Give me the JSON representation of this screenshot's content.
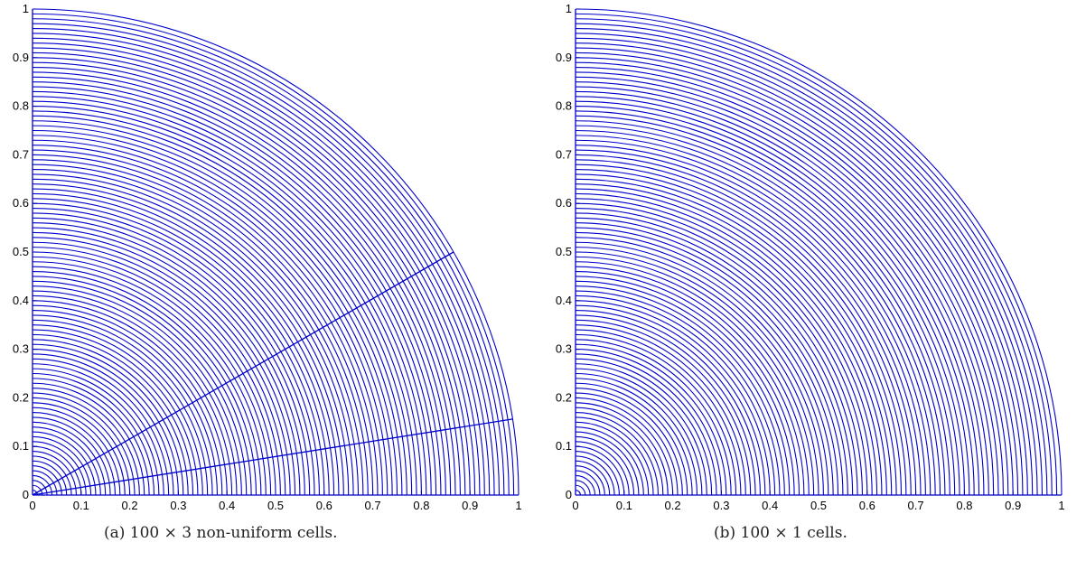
{
  "chart_data": [
    {
      "type": "mesh",
      "caption": "(a) 100 × 3 non-uniform cells.",
      "xlim": [
        0,
        1
      ],
      "ylim": [
        0,
        1
      ],
      "radial_cells": 100,
      "angular_cells": 3,
      "outer_radius": 1,
      "ray_angles_deg": [
        0,
        9,
        30,
        90
      ],
      "line_color": "#0000cc",
      "x_ticks": [
        "0",
        "0.1",
        "0.2",
        "0.3",
        "0.4",
        "0.5",
        "0.6",
        "0.7",
        "0.8",
        "0.9",
        "1"
      ],
      "y_ticks": [
        "0",
        "0.1",
        "0.2",
        "0.3",
        "0.4",
        "0.5",
        "0.6",
        "0.7",
        "0.8",
        "0.9",
        "1"
      ]
    },
    {
      "type": "mesh",
      "caption": "(b) 100 × 1 cells.",
      "xlim": [
        0,
        1
      ],
      "ylim": [
        0,
        1
      ],
      "radial_cells": 100,
      "angular_cells": 1,
      "outer_radius": 1,
      "ray_angles_deg": [
        0,
        90
      ],
      "line_color": "#0000cc",
      "x_ticks": [
        "0",
        "0.1",
        "0.2",
        "0.3",
        "0.4",
        "0.5",
        "0.6",
        "0.7",
        "0.8",
        "0.9",
        "1"
      ],
      "y_ticks": [
        "0",
        "0.1",
        "0.2",
        "0.3",
        "0.4",
        "0.5",
        "0.6",
        "0.7",
        "0.8",
        "0.9",
        "1"
      ]
    }
  ]
}
